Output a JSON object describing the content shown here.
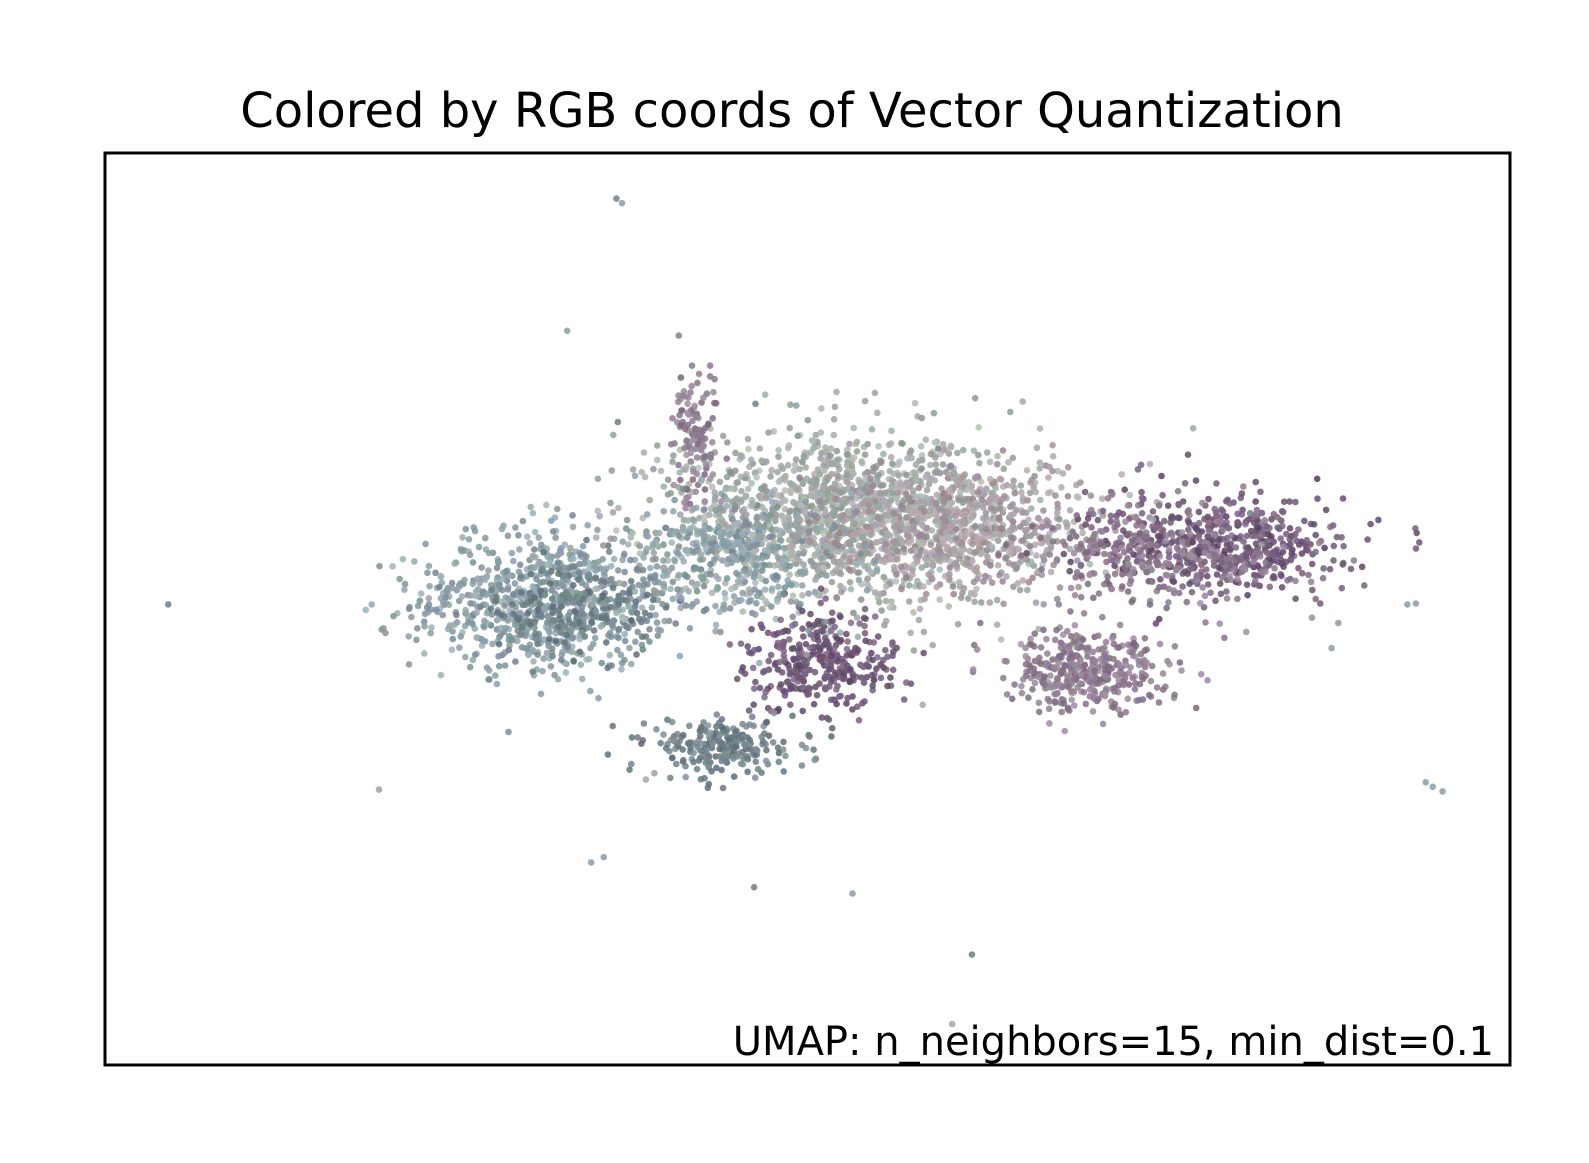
{
  "chart_data": {
    "type": "scatter",
    "title": "Colored by RGB coords of Vector Quantization",
    "annotation": "UMAP: n_neighbors=15, min_dist=0.1",
    "xlim": [
      0,
      100
    ],
    "ylim": [
      0,
      100
    ],
    "xticks": "none",
    "yticks": "none",
    "grid": false,
    "legend": "none",
    "colors": {
      "teal_gray": "#8a9ea6",
      "slate": "#6f8088",
      "gray_green": "#a2aaa6",
      "mauve": "#8e7b90",
      "purple": "#6e5676",
      "pink_gray": "#a79aa2"
    },
    "clusters": [
      {
        "name": "left-teal-blob",
        "center": [
          31,
          51
        ],
        "spread": [
          6,
          5
        ],
        "count": 700,
        "color": "teal_gray"
      },
      {
        "name": "left-teal-core",
        "center": [
          34,
          50
        ],
        "spread": [
          4,
          3.5
        ],
        "count": 250,
        "color": "slate"
      },
      {
        "name": "central-mass",
        "center": [
          53,
          60
        ],
        "spread": [
          9,
          6
        ],
        "count": 1500,
        "color": "gray_green"
      },
      {
        "name": "central-mauve",
        "center": [
          60,
          59
        ],
        "spread": [
          7,
          5
        ],
        "count": 600,
        "color": "pink_gray"
      },
      {
        "name": "right-purple-blob",
        "center": [
          79,
          57
        ],
        "spread": [
          6,
          3.5
        ],
        "count": 520,
        "color": "purple"
      },
      {
        "name": "right-purple-halo",
        "center": [
          75,
          56
        ],
        "spread": [
          7,
          4
        ],
        "count": 260,
        "color": "mauve"
      },
      {
        "name": "lower-mid-purple",
        "center": [
          70,
          43
        ],
        "spread": [
          4,
          3
        ],
        "count": 380,
        "color": "mauve"
      },
      {
        "name": "lower-center-purple",
        "center": [
          51,
          44
        ],
        "spread": [
          3.5,
          3.5
        ],
        "count": 330,
        "color": "purple"
      },
      {
        "name": "lower-left-teal",
        "center": [
          44,
          35
        ],
        "spread": [
          3.5,
          2
        ],
        "count": 230,
        "color": "slate"
      },
      {
        "name": "upper-left-arm",
        "center": [
          42,
          69
        ],
        "spread": [
          1,
          5
        ],
        "count": 120,
        "color": "mauve"
      },
      {
        "name": "mid-left-bridge",
        "center": [
          45,
          56
        ],
        "spread": [
          5,
          4
        ],
        "count": 350,
        "color": "teal_gray"
      }
    ],
    "outliers": [
      [
        36.4,
        95.0,
        "slate"
      ],
      [
        36.8,
        94.5,
        "teal_gray"
      ],
      [
        32.9,
        80.5,
        "teal_gray"
      ],
      [
        36.5,
        70.5,
        "slate"
      ],
      [
        46.3,
        72.5,
        "slate"
      ],
      [
        49.2,
        72.3,
        "teal_gray"
      ],
      [
        54.1,
        72.8,
        "pink_gray"
      ],
      [
        54.8,
        73.7,
        "pink_gray"
      ],
      [
        59.3,
        67.6,
        "slate"
      ],
      [
        60.4,
        65.0,
        "gray_green"
      ],
      [
        74.6,
        59.8,
        "gray_green"
      ],
      [
        81.5,
        60.5,
        "slate"
      ],
      [
        30.3,
        61.2,
        "gray_green"
      ],
      [
        4.5,
        50.5,
        "slate"
      ],
      [
        23.1,
        52.5,
        "teal_gray"
      ],
      [
        23.8,
        52.4,
        "slate"
      ],
      [
        24.4,
        52.3,
        "teal_gray"
      ],
      [
        25.2,
        52.6,
        "teal_gray"
      ],
      [
        27.5,
        52.1,
        "slate"
      ],
      [
        92.7,
        50.5,
        "teal_gray"
      ],
      [
        93.3,
        50.6,
        "teal_gray"
      ],
      [
        87.3,
        45.7,
        "teal_gray"
      ],
      [
        58.2,
        39.5,
        "gray_green"
      ],
      [
        39.1,
        32.0,
        "pink_gray"
      ],
      [
        38.5,
        31.3,
        "gray_green"
      ],
      [
        49.7,
        42.2,
        "purple"
      ],
      [
        49.4,
        42.5,
        "purple"
      ],
      [
        19.5,
        30.2,
        "pink_gray"
      ],
      [
        94.0,
        31.0,
        "teal_gray"
      ],
      [
        94.5,
        30.5,
        "teal_gray"
      ],
      [
        95.2,
        30.0,
        "teal_gray"
      ],
      [
        34.6,
        22.2,
        "teal_gray"
      ],
      [
        35.5,
        22.8,
        "teal_gray"
      ],
      [
        46.2,
        19.5,
        "slate"
      ],
      [
        53.2,
        18.8,
        "teal_gray"
      ],
      [
        61.7,
        12.1,
        "slate"
      ],
      [
        60.3,
        4.5,
        "gray_green"
      ]
    ]
  }
}
